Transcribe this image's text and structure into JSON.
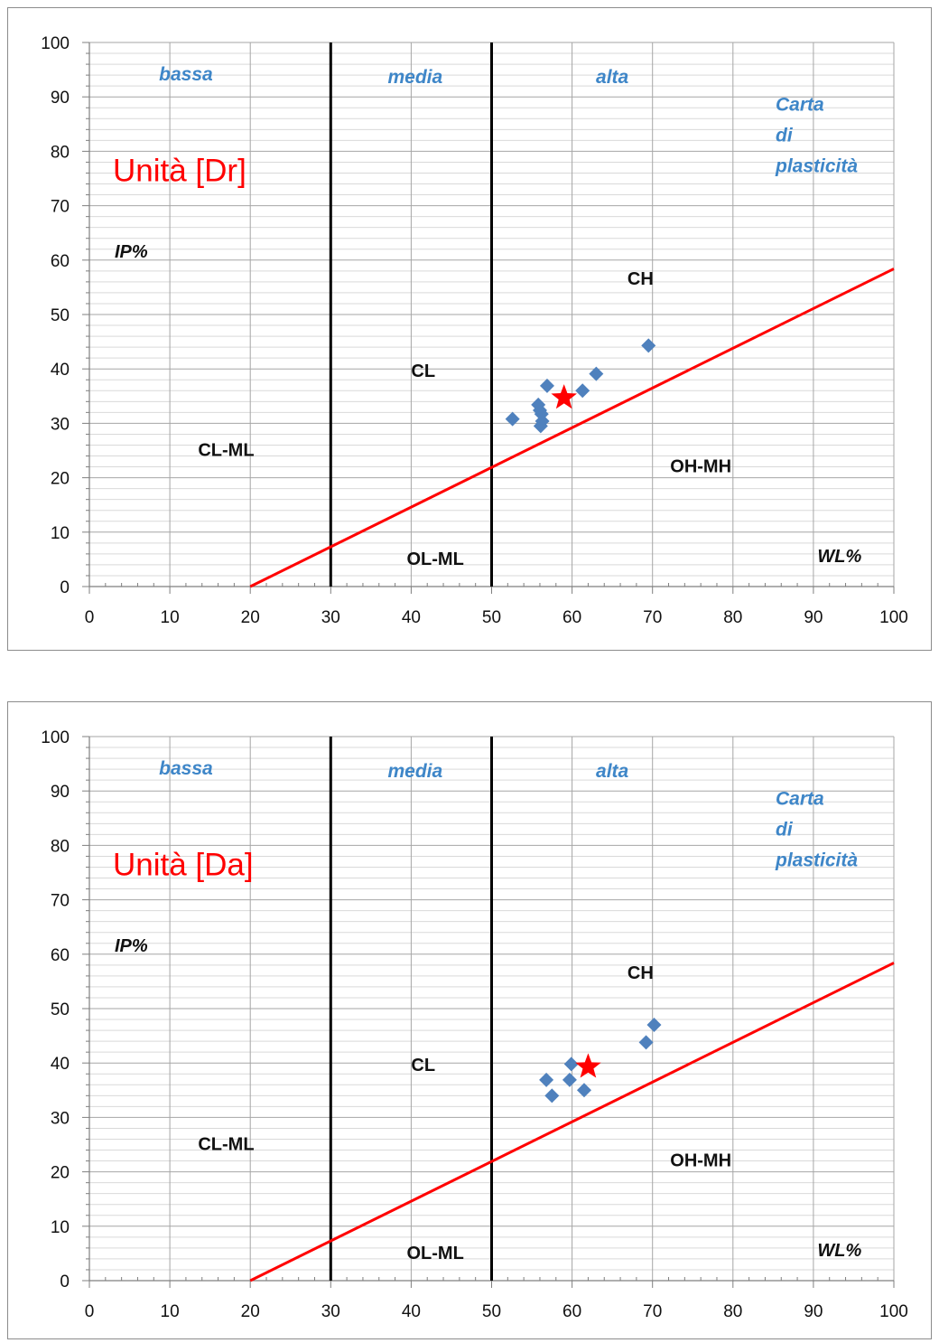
{
  "chart_data": [
    {
      "type": "scatter",
      "title": "Unità [Dr]",
      "subtitle_lines": [
        "Carta",
        "di",
        "plasticità"
      ],
      "xlabel": "WL%",
      "ylabel": "IP%",
      "xlim": [
        0,
        100
      ],
      "ylim": [
        0,
        100
      ],
      "xticks": [
        "0",
        "10",
        "20",
        "30",
        "40",
        "50",
        "60",
        "70",
        "80",
        "90",
        "100"
      ],
      "yticks": [
        "0",
        "10",
        "20",
        "30",
        "40",
        "50",
        "60",
        "70",
        "80",
        "90",
        "100"
      ],
      "zones": [
        {
          "label": "bassa",
          "x": 12,
          "y": 93
        },
        {
          "label": "media",
          "x": 40.5,
          "y": 92.5
        },
        {
          "label": "alta",
          "x": 65,
          "y": 92.5
        }
      ],
      "regions": [
        {
          "label": "CH",
          "x": 68.5,
          "y": 55.5
        },
        {
          "label": "CL",
          "x": 41.5,
          "y": 38.5
        },
        {
          "label": "CL-ML",
          "x": 17,
          "y": 24
        },
        {
          "label": "OH-MH",
          "x": 76,
          "y": 21
        },
        {
          "label": "OL-ML",
          "x": 43,
          "y": 4
        }
      ],
      "boundaries": [
        30,
        50
      ],
      "a_line": {
        "x0": 20,
        "y0": 0,
        "x1": 100,
        "y1": 58.4
      },
      "grid": {
        "major_x": true,
        "minor_y": true
      },
      "series": [
        {
          "marker": "diamond",
          "color": "#4f81bd",
          "points": [
            {
              "x": 52.6,
              "y": 30.8
            },
            {
              "x": 55.8,
              "y": 33.4
            },
            {
              "x": 56.0,
              "y": 32.4
            },
            {
              "x": 56.2,
              "y": 31.7
            },
            {
              "x": 56.1,
              "y": 29.5
            },
            {
              "x": 56.3,
              "y": 30.4
            },
            {
              "x": 56.9,
              "y": 36.9
            },
            {
              "x": 61.3,
              "y": 36.0
            },
            {
              "x": 63.0,
              "y": 39.1
            },
            {
              "x": 69.5,
              "y": 44.3
            }
          ]
        },
        {
          "marker": "star",
          "color": "#ff0000",
          "points": [
            {
              "x": 59.0,
              "y": 34.7
            }
          ]
        }
      ]
    },
    {
      "type": "scatter",
      "title": "Unità [Da]",
      "subtitle_lines": [
        "Carta",
        "di",
        "plasticità"
      ],
      "xlabel": "WL%",
      "ylabel": "IP%",
      "xlim": [
        0,
        100
      ],
      "ylim": [
        0,
        100
      ],
      "xticks": [
        "0",
        "10",
        "20",
        "30",
        "40",
        "50",
        "60",
        "70",
        "80",
        "90",
        "100"
      ],
      "yticks": [
        "0",
        "10",
        "20",
        "30",
        "40",
        "50",
        "60",
        "70",
        "80",
        "90",
        "100"
      ],
      "zones": [
        {
          "label": "bassa",
          "x": 12,
          "y": 93
        },
        {
          "label": "media",
          "x": 40.5,
          "y": 92.5
        },
        {
          "label": "alta",
          "x": 65,
          "y": 92.5
        }
      ],
      "regions": [
        {
          "label": "CH",
          "x": 68.5,
          "y": 55.5
        },
        {
          "label": "CL",
          "x": 41.5,
          "y": 38.5
        },
        {
          "label": "CL-ML",
          "x": 17,
          "y": 24
        },
        {
          "label": "OH-MH",
          "x": 76,
          "y": 21
        },
        {
          "label": "OL-ML",
          "x": 43,
          "y": 4
        }
      ],
      "boundaries": [
        30,
        50
      ],
      "a_line": {
        "x0": 20,
        "y0": 0,
        "x1": 100,
        "y1": 58.4
      },
      "grid": {
        "major_x": true,
        "minor_y": true
      },
      "series": [
        {
          "marker": "diamond",
          "color": "#4f81bd",
          "points": [
            {
              "x": 56.8,
              "y": 36.9
            },
            {
              "x": 57.5,
              "y": 34.0
            },
            {
              "x": 59.7,
              "y": 36.9
            },
            {
              "x": 59.9,
              "y": 39.8
            },
            {
              "x": 61.5,
              "y": 35.0
            },
            {
              "x": 69.2,
              "y": 43.8
            },
            {
              "x": 70.2,
              "y": 47.0
            }
          ]
        },
        {
          "marker": "star",
          "color": "#ff0000",
          "points": [
            {
              "x": 62.0,
              "y": 39.3
            }
          ]
        }
      ]
    }
  ]
}
